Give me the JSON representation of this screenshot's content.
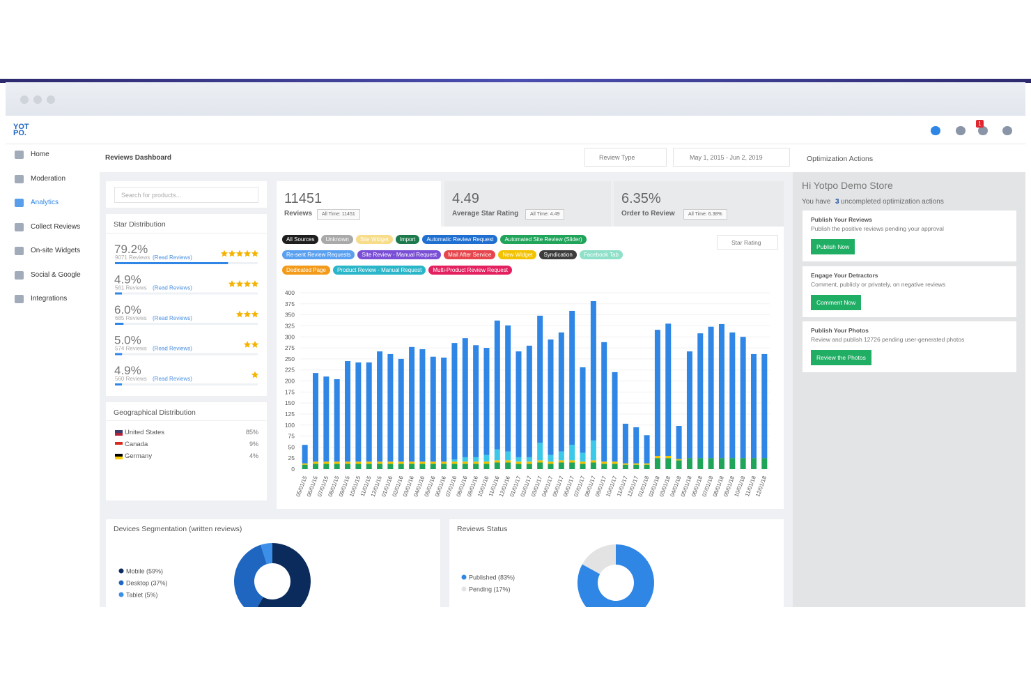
{
  "logo": {
    "line1": "YOT",
    "line2": "PO."
  },
  "header": {
    "notifications": "1"
  },
  "sidebar": [
    {
      "label": "Home",
      "active": false
    },
    {
      "label": "Moderation",
      "active": false
    },
    {
      "label": "Analytics",
      "active": true
    },
    {
      "label": "Collect Reviews",
      "active": false
    },
    {
      "label": "On-site Widgets",
      "active": false
    },
    {
      "label": "Social & Google",
      "active": false
    },
    {
      "label": "Integrations",
      "active": false
    }
  ],
  "page_title": "Reviews Dashboard",
  "review_type": "Review Type",
  "date_range": "May 1, 2015 - Jun 2, 2019",
  "search_placeholder": "Search for products...",
  "star_distribution": {
    "title": "Star Distribution",
    "link": "(Read Reviews)",
    "rows": [
      {
        "value": 79.2,
        "label": "79.2%",
        "reviews": "9071 Reviews",
        "stars": 5
      },
      {
        "value": 4.9,
        "label": "4.9%",
        "reviews": "561 Reviews",
        "stars": 4
      },
      {
        "value": 6.0,
        "label": "6.0%",
        "reviews": "685 Reviews",
        "stars": 3
      },
      {
        "value": 5.0,
        "label": "5.0%",
        "reviews": "574 Reviews",
        "stars": 2
      },
      {
        "value": 4.9,
        "label": "4.9%",
        "reviews": "560 Reviews",
        "stars": 1
      }
    ]
  },
  "geo": {
    "title": "Geographical Distribution",
    "rows": [
      {
        "country": "United States",
        "label": "85%"
      },
      {
        "country": "Canada",
        "label": "9%"
      },
      {
        "country": "Germany",
        "label": "4%"
      }
    ]
  },
  "stats": [
    {
      "value": "11451",
      "label": "Reviews",
      "all_time": "All Time: 11451"
    },
    {
      "value": "4.49",
      "label": "Average Star Rating",
      "all_time": "All Time: 4.49"
    },
    {
      "value": "6.35%",
      "label": "Order to Review",
      "all_time": "All Time: 6.38%"
    }
  ],
  "sources": [
    {
      "label": "All Sources",
      "color": "#1e1e1e"
    },
    {
      "label": "Unknown",
      "color": "#a9a9a9"
    },
    {
      "label": "Site Widget",
      "color": "#f7dc8a"
    },
    {
      "label": "Import",
      "color": "#1d7a4c"
    },
    {
      "label": "Automatic Review Request",
      "color": "#1f6fd1"
    },
    {
      "label": "Automated Site Review (Slider)",
      "color": "#1fa45a"
    },
    {
      "label": "Re-sent Review Requests",
      "color": "#5aa0f0"
    },
    {
      "label": "Site Review - Manual Request",
      "color": "#7a4fd6"
    },
    {
      "label": "Mail After Service",
      "color": "#e5454b"
    },
    {
      "label": "New Widget",
      "color": "#f2c200"
    },
    {
      "label": "Syndication",
      "color": "#3c3c3c"
    },
    {
      "label": "Facebook Tab",
      "color": "#8fe0c9"
    },
    {
      "label": "Dedicated Page",
      "color": "#f39a1a"
    },
    {
      "label": "Product Review - Manual Request",
      "color": "#2bb5c9"
    },
    {
      "label": "Multi-Product Review Request",
      "color": "#e3215f"
    }
  ],
  "star_rating": "Star Rating",
  "chart_data": {
    "type": "bar",
    "stacked": true,
    "grid": true,
    "ylim": [
      0,
      400
    ],
    "yticks": [
      0,
      25,
      50,
      75,
      100,
      125,
      150,
      175,
      200,
      225,
      250,
      275,
      300,
      325,
      350,
      375,
      400
    ],
    "categories": [
      "05/01/15",
      "06/01/15",
      "07/01/15",
      "08/01/15",
      "09/01/15",
      "10/01/15",
      "11/01/15",
      "12/01/15",
      "01/01/16",
      "02/01/16",
      "03/01/16",
      "04/01/16",
      "05/01/16",
      "06/01/16",
      "07/01/16",
      "08/01/16",
      "09/01/16",
      "10/01/16",
      "11/01/16",
      "12/01/16",
      "01/01/17",
      "02/01/17",
      "03/01/17",
      "04/01/17",
      "05/01/17",
      "06/01/17",
      "07/01/17",
      "08/01/17",
      "09/01/17",
      "10/01/17",
      "11/01/17",
      "12/01/17",
      "01/01/18",
      "02/01/18",
      "03/01/18",
      "04/01/18",
      "05/01/18",
      "06/01/18",
      "07/01/18",
      "08/01/18",
      "09/01/18",
      "10/01/18",
      "11/01/18",
      "12/01/18"
    ],
    "series": [
      {
        "color": "#1fa45a",
        "values": [
          10,
          12,
          12,
          12,
          12,
          12,
          12,
          12,
          12,
          12,
          12,
          12,
          12,
          12,
          12,
          12,
          12,
          12,
          15,
          15,
          12,
          12,
          15,
          12,
          15,
          15,
          12,
          15,
          12,
          12,
          10,
          10,
          10,
          25,
          25,
          20,
          25,
          25,
          25,
          25,
          25,
          25,
          25,
          25
        ]
      },
      {
        "color": "#f2c200",
        "values": [
          3,
          5,
          5,
          5,
          5,
          5,
          5,
          5,
          5,
          5,
          5,
          5,
          5,
          5,
          5,
          5,
          5,
          5,
          5,
          5,
          5,
          5,
          5,
          5,
          5,
          5,
          5,
          5,
          5,
          5,
          3,
          3,
          3,
          5,
          5,
          3,
          0,
          0,
          0,
          0,
          0,
          0,
          0,
          0
        ]
      },
      {
        "color": "#3cc8e8",
        "values": [
          0,
          0,
          0,
          0,
          0,
          0,
          0,
          0,
          0,
          0,
          0,
          0,
          0,
          0,
          5,
          10,
          10,
          15,
          25,
          20,
          10,
          10,
          40,
          15,
          20,
          35,
          20,
          45,
          0,
          0,
          0,
          0,
          0,
          0,
          0,
          0,
          0,
          0,
          0,
          0,
          0,
          0,
          0,
          0
        ]
      },
      {
        "color": "#2f86e5",
        "values": [
          42,
          201,
          193,
          187,
          228,
          225,
          225,
          250,
          244,
          233,
          260,
          255,
          238,
          236,
          264,
          270,
          254,
          243,
          292,
          286,
          240,
          253,
          288,
          262,
          270,
          304,
          194,
          316,
          271,
          203,
          90,
          82,
          64,
          286,
          300,
          75,
          242,
          283,
          298,
          304,
          285,
          275,
          236,
          236
        ]
      }
    ]
  },
  "devices": {
    "title": "Devices Segmentation (written reviews)",
    "type": "pie",
    "slices": [
      {
        "label": "Mobile (59%)",
        "value": 59,
        "color": "#0b2b5c"
      },
      {
        "label": "Desktop (37%)",
        "value": 37,
        "color": "#1f66c1"
      },
      {
        "label": "Tablet (5%)",
        "value": 5,
        "color": "#3b8fe8"
      }
    ]
  },
  "status": {
    "title": "Reviews Status",
    "type": "pie",
    "slices": [
      {
        "label": "Published (83%)",
        "value": 83,
        "color": "#2f86e5"
      },
      {
        "label": "Pending (17%)",
        "value": 17,
        "color": "#e3e3e3"
      }
    ]
  },
  "optimization": {
    "title": "Optimization Actions",
    "greeting": "Hi Yotpo Demo Store",
    "summary_before": "You have",
    "count": "3",
    "summary_after": "uncompleted optimization actions",
    "cards": [
      {
        "title": "Publish Your Reviews",
        "text": "Publish the positive reviews pending your approval",
        "button": "Publish Now"
      },
      {
        "title": "Engage Your Detractors",
        "text": "Comment, publicly or privately, on negative reviews",
        "button": "Comment Now"
      },
      {
        "title": "Publish Your Photos",
        "text": "Review and publish 12726 pending user-generated photos",
        "button": "Review the Photos"
      }
    ]
  }
}
